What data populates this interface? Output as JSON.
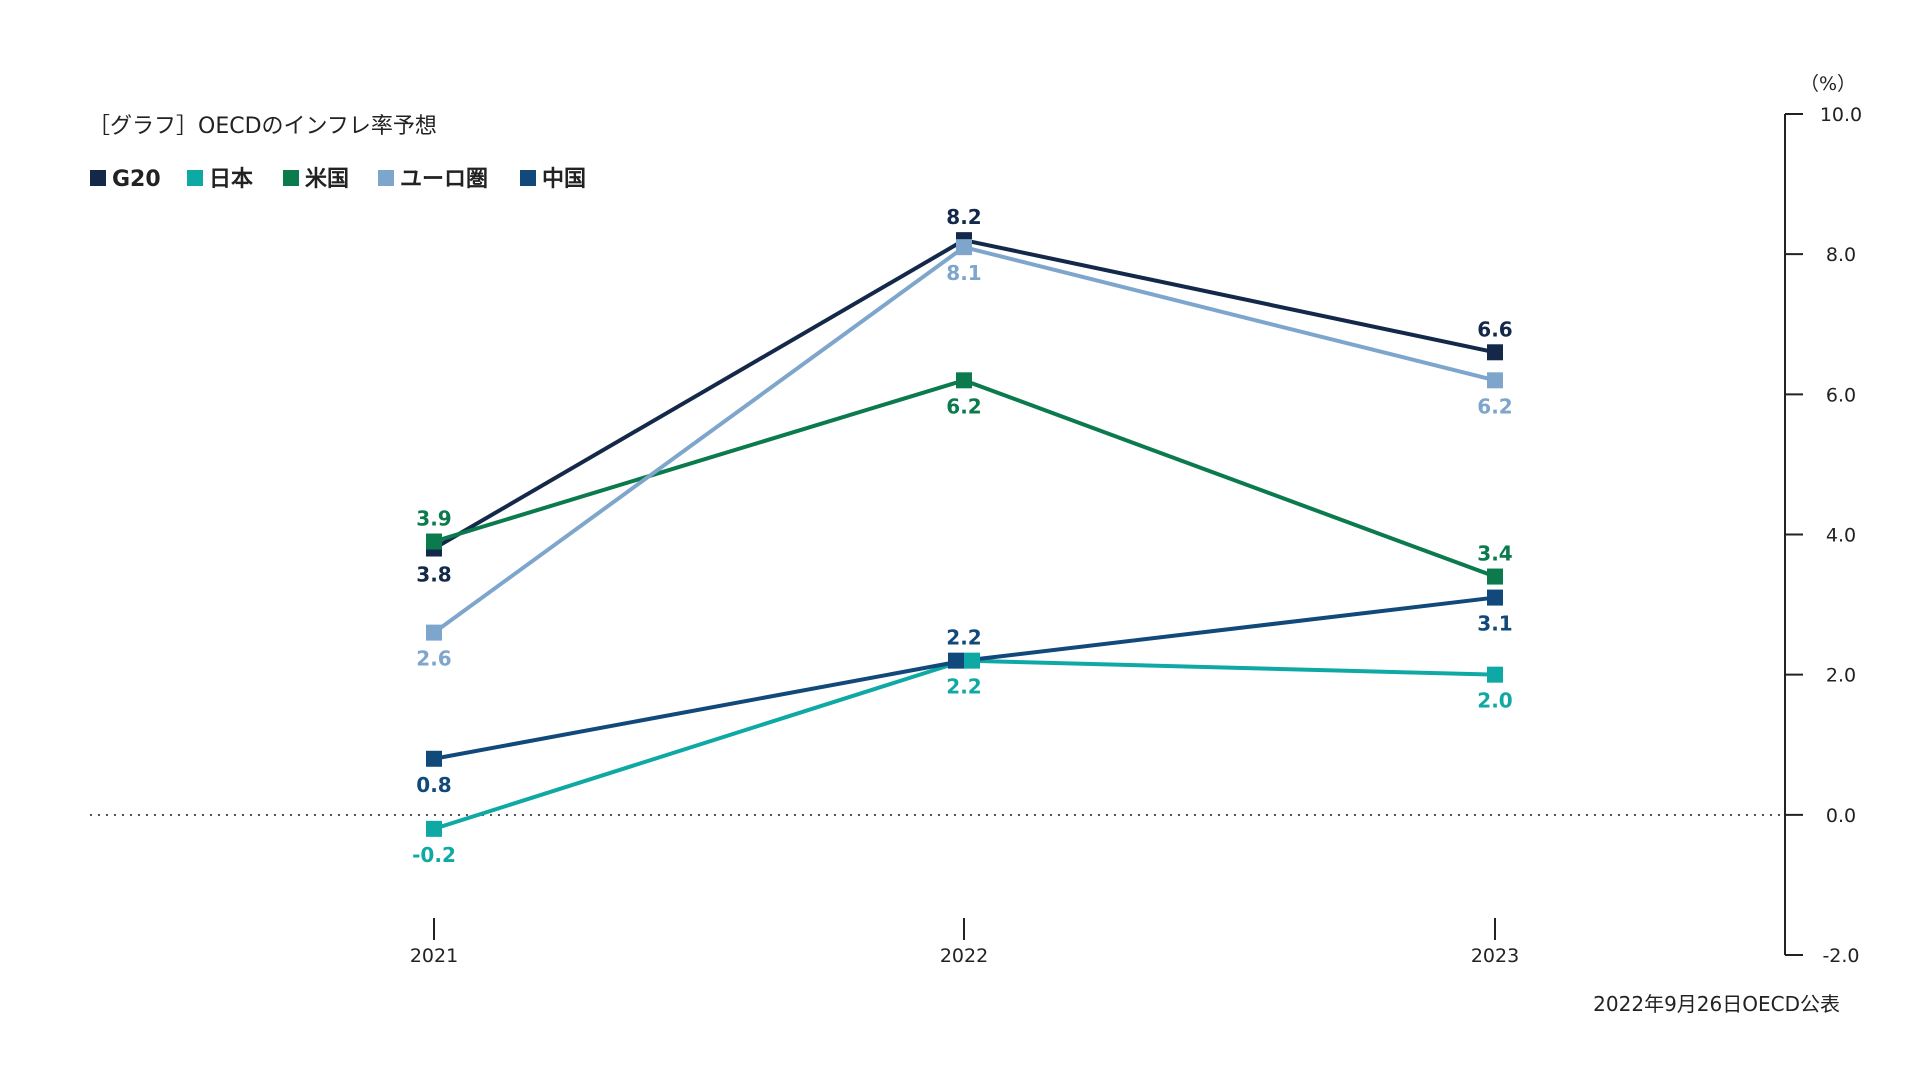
{
  "chart_data": {
    "type": "line",
    "title": "［グラフ］OECDのインフレ率予想",
    "unit": "（%）",
    "footnote": "2022年9月26日OECD公表",
    "x": [
      "2021",
      "2022",
      "2023"
    ],
    "ylim": [
      -2.0,
      10.0
    ],
    "yticks": [
      "10.0",
      "8.0",
      "6.0",
      "4.0",
      "2.0",
      "0.0",
      "-2.0"
    ],
    "ytick_values": [
      10,
      8,
      6,
      4,
      2,
      0,
      -2
    ],
    "legend_placement": "top-left",
    "grid": false,
    "series": [
      {
        "name": "G20",
        "color": "#14294a",
        "values": [
          3.8,
          8.2,
          6.6
        ],
        "labels": [
          "3.8",
          "8.2",
          "6.6"
        ],
        "label_pos": [
          "below",
          "above",
          "above"
        ]
      },
      {
        "name": "日本",
        "color": "#0fa9a5",
        "values": [
          -0.2,
          2.2,
          2.0
        ],
        "labels": [
          "-0.2",
          "2.2",
          "2.0"
        ],
        "label_pos": [
          "below",
          "below",
          "below"
        ]
      },
      {
        "name": "米国",
        "color": "#0b7a4c",
        "values": [
          3.9,
          6.2,
          3.4
        ],
        "labels": [
          "3.9",
          "6.2",
          "3.4"
        ],
        "label_pos": [
          "above",
          "below",
          "above"
        ]
      },
      {
        "name": "ユーロ圏",
        "color": "#7ea6cc",
        "values": [
          2.6,
          8.1,
          6.2
        ],
        "labels": [
          "2.6",
          "8.1",
          "6.2"
        ],
        "label_pos": [
          "below",
          "below",
          "below"
        ]
      },
      {
        "name": "中国",
        "color": "#10497a",
        "values": [
          0.8,
          2.2,
          3.1
        ],
        "labels": [
          "0.8",
          "2.2",
          "3.1"
        ],
        "label_pos": [
          "below",
          "above",
          "below"
        ]
      }
    ]
  }
}
